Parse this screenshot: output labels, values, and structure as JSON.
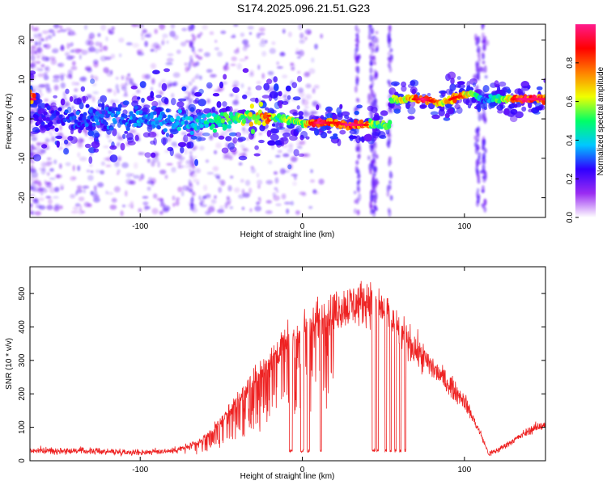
{
  "title": "S174.2025.096.21.51.G23",
  "chart_data": [
    {
      "type": "heatmap",
      "xlabel": "Height of straight line (km)",
      "ylabel": "Frequency (Hz)",
      "xlim": [
        -168,
        150
      ],
      "ylim": [
        -25,
        24
      ],
      "xticks": [
        -100,
        0,
        100
      ],
      "yticks": [
        -20,
        -10,
        0,
        10,
        20
      ],
      "colorbar": {
        "label": "Normalized spectral amplitude",
        "range": [
          0,
          1
        ],
        "ticks": [
          0.0,
          0.2,
          0.4,
          0.6,
          0.8
        ],
        "colormap": [
          "#ffffff",
          "#9a2cf2",
          "#2f00ff",
          "#00c8ff",
          "#00ff66",
          "#f0ff00",
          "#ff8000",
          "#ff0000",
          "#ff1a8c"
        ]
      },
      "ridge": [
        {
          "x": -165,
          "f": 0.5,
          "a": 0.25
        },
        {
          "x": -140,
          "f": 0.0,
          "a": 0.3
        },
        {
          "x": -100,
          "f": 0.3,
          "a": 0.35
        },
        {
          "x": -70,
          "f": -1.0,
          "a": 0.4
        },
        {
          "x": -40,
          "f": 0.0,
          "a": 0.55
        },
        {
          "x": -20,
          "f": 0.8,
          "a": 0.8
        },
        {
          "x": -15,
          "f": 0.0,
          "a": 0.45
        },
        {
          "x": -10,
          "f": -0.2,
          "a": 0.6
        },
        {
          "x": 0,
          "f": -1.0,
          "a": 0.6
        },
        {
          "x": 10,
          "f": -1.0,
          "a": 0.95
        },
        {
          "x": 20,
          "f": -1.0,
          "a": 0.8
        },
        {
          "x": 28,
          "f": -1.5,
          "a": 0.95
        },
        {
          "x": 38,
          "f": -1.5,
          "a": 0.9
        },
        {
          "x": 45,
          "f": -1.5,
          "a": 0.5
        },
        {
          "x": 52,
          "f": -1.5,
          "a": 0.6
        },
        {
          "x": 56,
          "f": 5.0,
          "a": 0.6
        },
        {
          "x": 65,
          "f": 5.0,
          "a": 0.7
        },
        {
          "x": 75,
          "f": 5.0,
          "a": 0.95
        },
        {
          "x": 85,
          "f": 4.0,
          "a": 0.7
        },
        {
          "x": 95,
          "f": 5.5,
          "a": 0.85
        },
        {
          "x": 105,
          "f": 6.5,
          "a": 0.6
        },
        {
          "x": 112,
          "f": 4.5,
          "a": 0.3
        },
        {
          "x": 120,
          "f": 5.0,
          "a": 0.5
        },
        {
          "x": 135,
          "f": 5.0,
          "a": 0.95
        },
        {
          "x": 150,
          "f": 5.0,
          "a": 0.9
        }
      ]
    },
    {
      "type": "line",
      "xlabel": "Height of straight line (km)",
      "ylabel": "SNR (10 * v/v)",
      "xlim": [
        -168,
        150
      ],
      "ylim": [
        0,
        580
      ],
      "xticks": [
        -100,
        0,
        100
      ],
      "yticks": [
        0,
        100,
        200,
        300,
        400,
        500
      ],
      "series": [
        {
          "color": "#ee2222",
          "x": [
            -168,
            -140,
            -100,
            -80,
            -65,
            -55,
            -45,
            -35,
            -25,
            -15,
            -5,
            5,
            15,
            25,
            35,
            40,
            45,
            50,
            55,
            60,
            70,
            80,
            90,
            100,
            110,
            115,
            120,
            130,
            140,
            150
          ],
          "y": [
            30,
            30,
            25,
            30,
            50,
            90,
            150,
            210,
            270,
            330,
            370,
            410,
            440,
            460,
            470,
            480,
            470,
            450,
            420,
            390,
            330,
            280,
            230,
            180,
            80,
            20,
            30,
            60,
            90,
            110
          ]
        }
      ]
    }
  ]
}
